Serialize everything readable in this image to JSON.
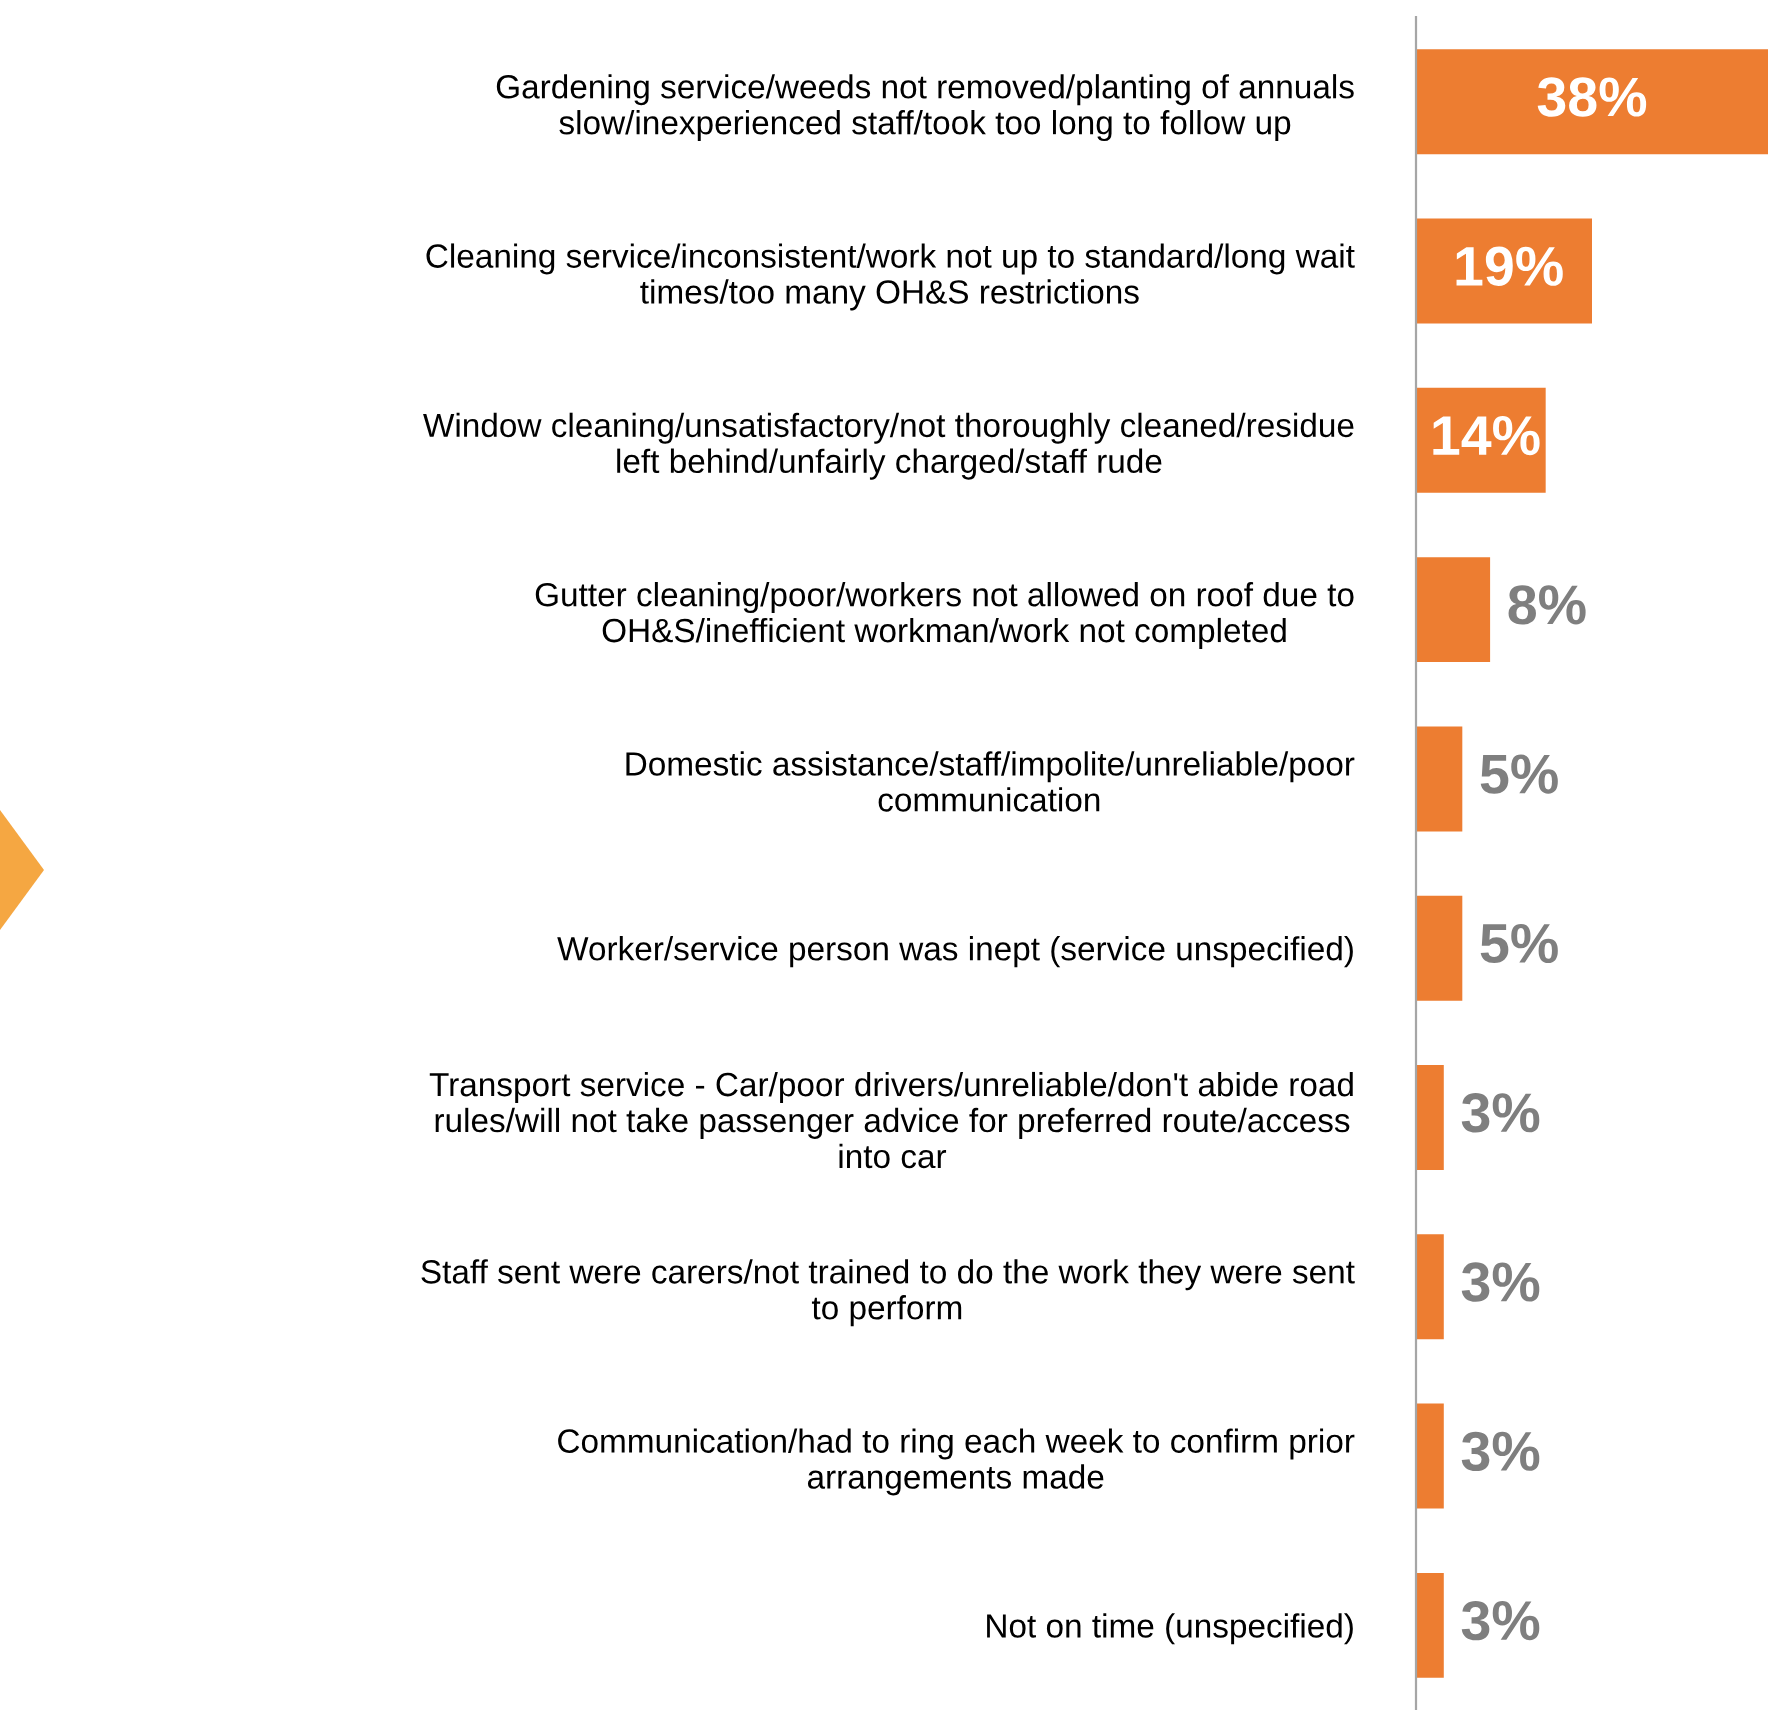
{
  "chart_data": {
    "type": "bar",
    "orientation": "horizontal",
    "categories": [
      "Gardening service/weeds not removed/planting of annuals\nslow/inexperienced staff/took too long to follow up",
      "Cleaning service/inconsistent/work not up to standard/long wait\ntimes/too many OH&S restrictions",
      "Window cleaning/unsatisfactory/not thoroughly cleaned/residue\nleft behind/unfairly charged/staff rude",
      "Gutter cleaning/poor/workers not allowed on roof due to\nOH&S/inefficient workman/work not completed",
      "Domestic assistance/staff/impolite/unreliable/poor\ncommunication",
      "Worker/service person was inept (service unspecified)",
      "Transport service - Car/poor drivers/unreliable/don't abide road\nrules/will not take passenger advice for preferred route/access\ninto car",
      "Staff sent were carers/not trained to do the work they were sent\nto perform",
      "Communication/had to ring each week to confirm prior\narrangements made",
      "Not on time (unspecified)"
    ],
    "values": [
      38,
      19,
      14,
      8,
      5,
      5,
      3,
      3,
      3,
      3
    ],
    "value_labels": [
      "38%",
      "19%",
      "14%",
      "8%",
      "5%",
      "5%",
      "3%",
      "3%",
      "3%",
      "3%"
    ],
    "color": "#ed7d31",
    "xlim": [
      0,
      38
    ],
    "tick_labels": "y"
  }
}
